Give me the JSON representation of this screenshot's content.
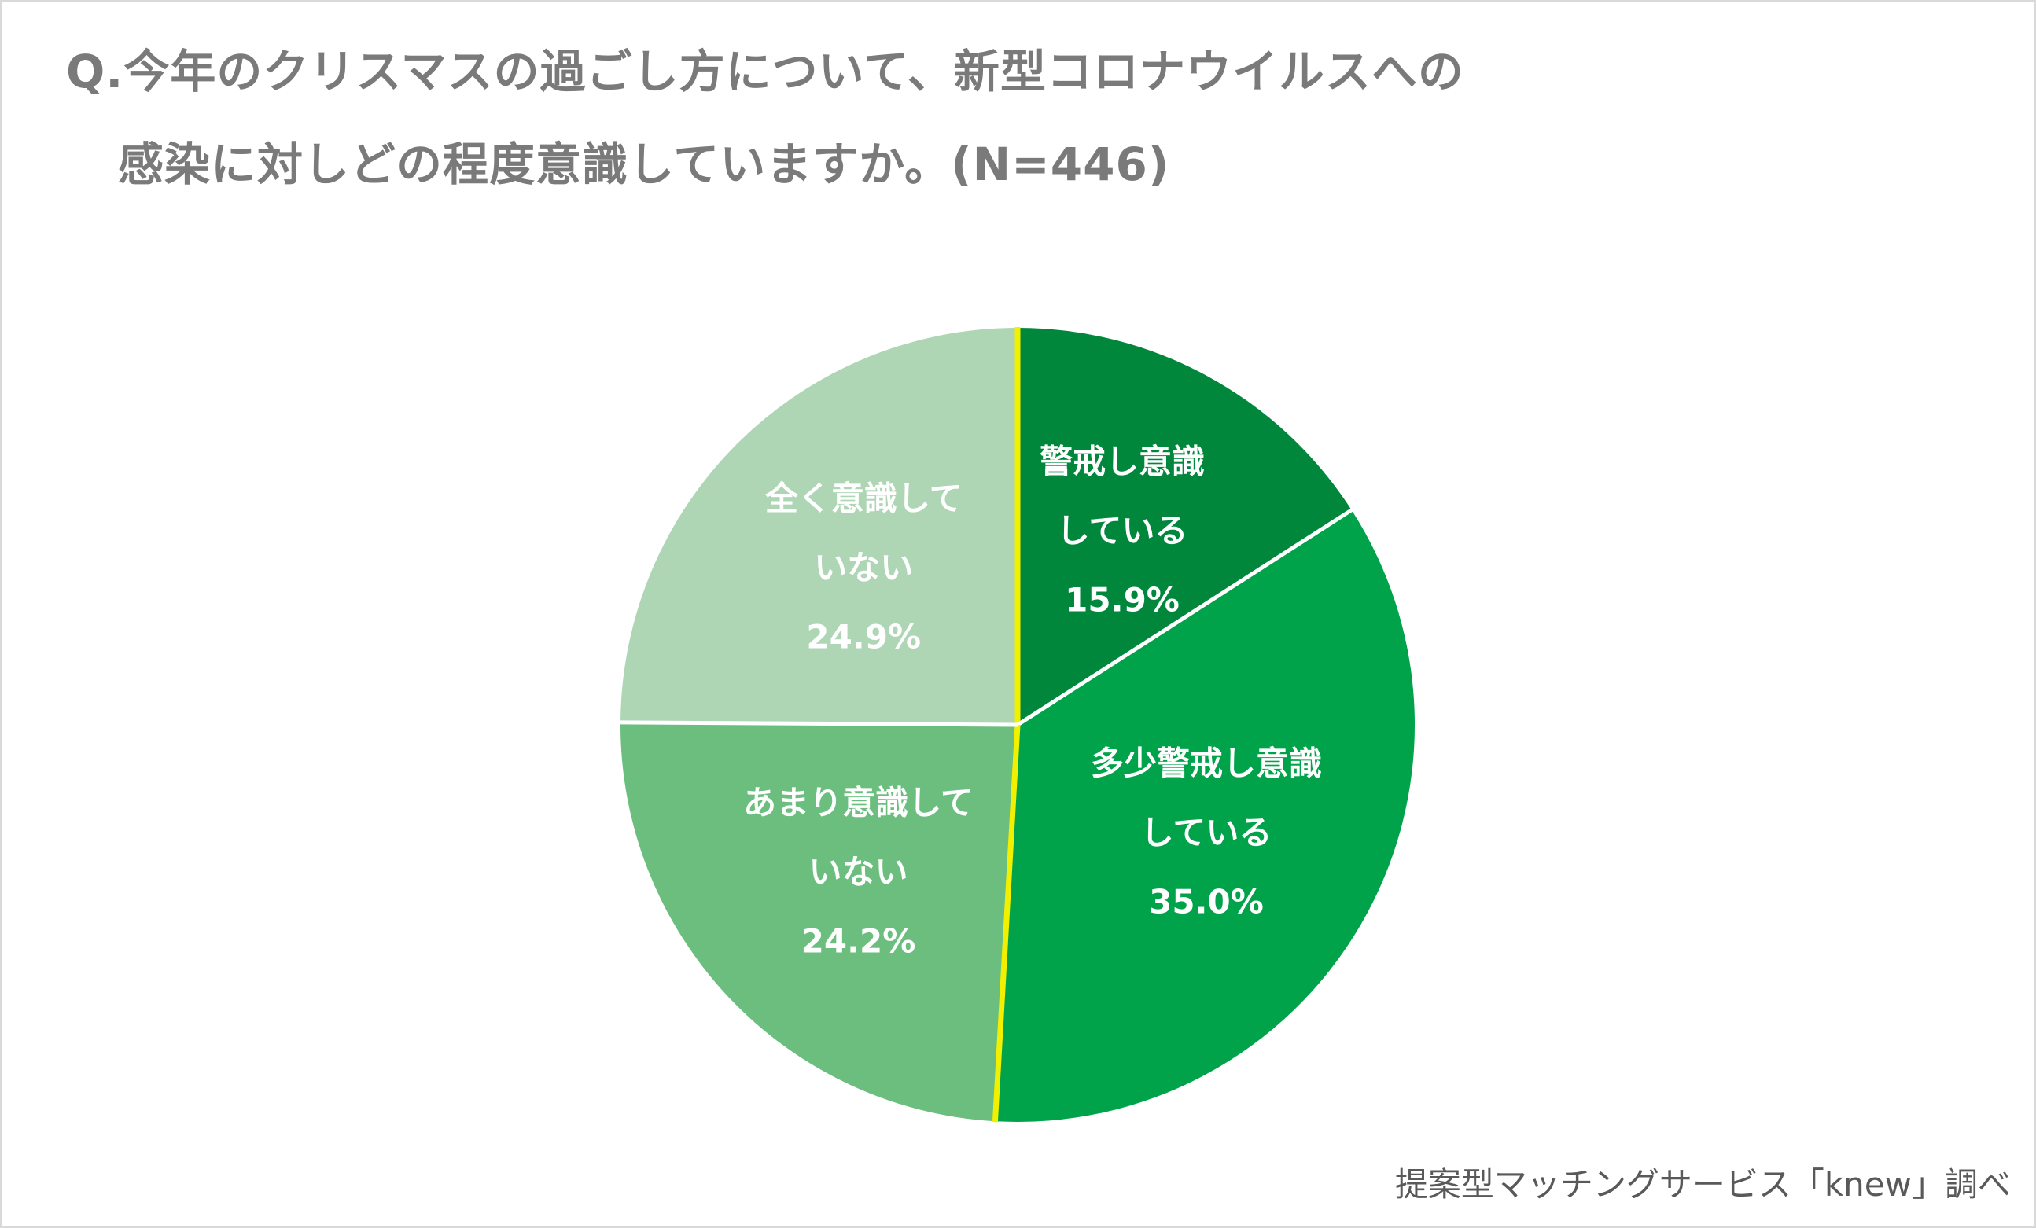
{
  "title": {
    "line1": "Q.今年のクリスマスの過ごし方について、新型コロナウイルスへの",
    "line2": "感染に対しどの程度意識していますか。(N=446)"
  },
  "source": "提案型マッチングサービス「knew」調べ",
  "colors": {
    "slice1": "#00873c",
    "slice2": "#00a34a",
    "slice3": "#6bbe7e",
    "slice4": "#aed6b5",
    "separator": "#ffffff",
    "highlight_edge": "#f0f000"
  },
  "chart_data": {
    "type": "pie",
    "title": "Q.今年のクリスマスの過ごし方について、新型コロナウイルスへの感染に対しどの程度意識していますか。(N=446)",
    "n": 446,
    "start_angle": "12 o'clock, clockwise",
    "slices": [
      {
        "label_lines": [
          "警戒し意識",
          "している"
        ],
        "value": 15.9,
        "value_label": "15.9%"
      },
      {
        "label_lines": [
          "多少警戒し意識",
          "している"
        ],
        "value": 35.0,
        "value_label": "35.0%"
      },
      {
        "label_lines": [
          "あまり意識して",
          "いない"
        ],
        "value": 24.2,
        "value_label": "24.2%"
      },
      {
        "label_lines": [
          "全く意識して",
          "いない"
        ],
        "value": 24.9,
        "value_label": "24.9%"
      }
    ]
  }
}
